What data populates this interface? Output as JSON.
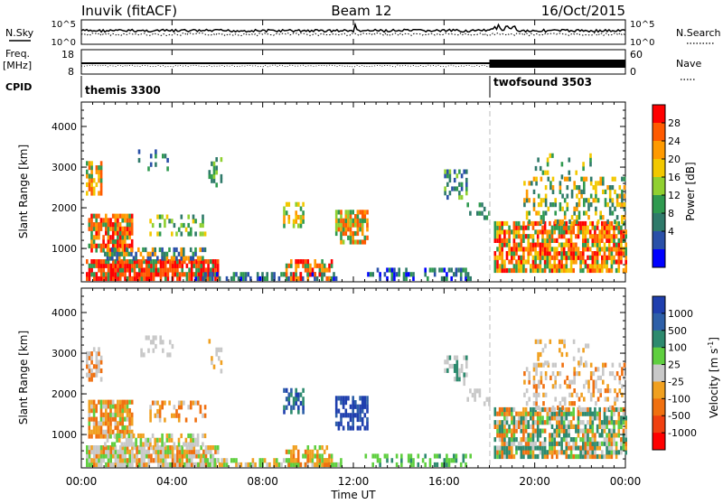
{
  "header": {
    "station": "Inuvik (fitACF)",
    "beam": "Beam 12",
    "date": "16/Oct/2015"
  },
  "top_panels": {
    "nsky_label": "N.Sky",
    "nsearch_label": "N.Search",
    "nsky_ticks": [
      "10^5",
      "10^0"
    ],
    "nsearch_ticks": [
      "10^5",
      "10^0"
    ],
    "freq_label": "Freq.",
    "freq_unit": "[MHz]",
    "freq_ticks": [
      "18",
      "8"
    ],
    "nave_label": "Nave",
    "nave_ticks": [
      "60",
      "0"
    ],
    "cpid_label": "CPID",
    "cpid_programs": [
      {
        "name": "themis 3300",
        "start_hour": 0,
        "end_hour": 18
      },
      {
        "name": "twofsound 3503",
        "start_hour": 18,
        "end_hour": 24
      }
    ]
  },
  "chart_data": [
    {
      "type": "heatmap",
      "name": "power",
      "ylabel": "Slant Range [km]",
      "xlabel": "Time UT",
      "x_range_hours": [
        0,
        24
      ],
      "ylim": [
        180,
        4600
      ],
      "y_ticks": [
        1000,
        2000,
        3000,
        4000
      ],
      "colorbar": {
        "label": "Power [dB]",
        "ticks": [
          28,
          24,
          20,
          16,
          12,
          8,
          4
        ],
        "colors": [
          "#ff0000",
          "#ff5a00",
          "#ff9a00",
          "#f2c800",
          "#90d030",
          "#2f9a4f",
          "#2f7a6a",
          "#2a50a8",
          "#0000ff"
        ]
      }
    },
    {
      "type": "heatmap",
      "name": "velocity",
      "ylabel": "Slant Range [km]",
      "xlabel": "Time UT",
      "x_range_hours": [
        0,
        24
      ],
      "ylim": [
        180,
        4600
      ],
      "y_ticks": [
        1000,
        2000,
        3000,
        4000
      ],
      "colorbar": {
        "label": "Velocity [m s",
        "label_sup": "-1",
        "label_end": "]",
        "ticks": [
          1000,
          500,
          100,
          25,
          -25,
          -100,
          -500,
          -1000
        ],
        "colors": [
          "#1f3fae",
          "#2d5fa8",
          "#2d8a6e",
          "#5fcf3f",
          "#c8c8c8",
          "#f0a020",
          "#f07010",
          "#f04010",
          "#ff0000"
        ]
      }
    }
  ],
  "x_ticks": [
    "00:00",
    "04:00",
    "08:00",
    "12:00",
    "16:00",
    "20:00",
    "00:00"
  ],
  "x_tick_hours": [
    0,
    4,
    8,
    12,
    16,
    20,
    24
  ],
  "time_axis_label": "Time UT",
  "colors": {
    "axis": "#000000",
    "background": "#ffffff",
    "dashed_marker": "#bbbbbb"
  }
}
